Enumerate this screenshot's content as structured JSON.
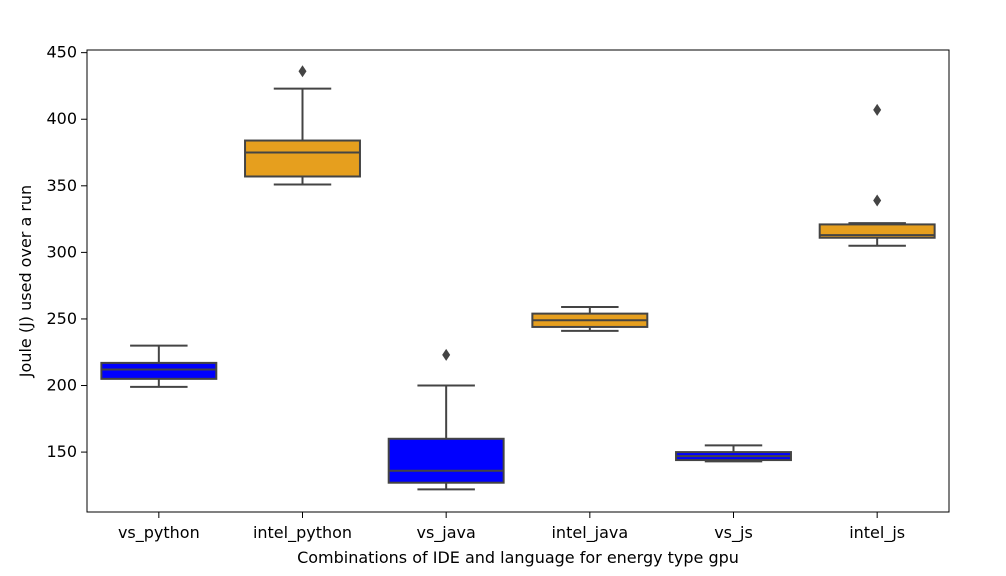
{
  "chart_data": {
    "type": "box",
    "title": "",
    "xlabel": "Combinations of IDE and language for energy type gpu",
    "ylabel": "Joule (J) used over a run",
    "ylim": [
      105,
      452
    ],
    "yticks": [
      150,
      200,
      250,
      300,
      350,
      400,
      450
    ],
    "grid": false,
    "legend": "none",
    "categories": [
      "vs_python",
      "intel_python",
      "vs_java",
      "intel_java",
      "vs_js",
      "intel_js"
    ],
    "boxes": [
      {
        "category": "vs_python",
        "whisker_low": 199,
        "q1": 205,
        "median": 212,
        "q3": 217,
        "whisker_high": 230,
        "outliers": [],
        "color": "#0000ff"
      },
      {
        "category": "intel_python",
        "whisker_low": 351,
        "q1": 357,
        "median": 375,
        "q3": 384,
        "whisker_high": 423,
        "outliers": [
          436
        ],
        "color": "#e69f1e"
      },
      {
        "category": "vs_java",
        "whisker_low": 122,
        "q1": 127,
        "median": 136,
        "q3": 160,
        "whisker_high": 200,
        "outliers": [
          223
        ],
        "color": "#0000ff"
      },
      {
        "category": "intel_java",
        "whisker_low": 241,
        "q1": 244,
        "median": 249,
        "q3": 254,
        "whisker_high": 259,
        "outliers": [],
        "color": "#e69f1e"
      },
      {
        "category": "vs_js",
        "whisker_low": 143,
        "q1": 144,
        "median": 147,
        "q3": 150,
        "whisker_high": 155,
        "outliers": [],
        "color": "#0000ff"
      },
      {
        "category": "intel_js",
        "whisker_low": 305,
        "q1": 311,
        "median": 313,
        "q3": 321,
        "whisker_high": 322,
        "outliers": [
          339,
          407
        ],
        "color": "#e69f1e"
      }
    ],
    "line_color": "#444444"
  }
}
